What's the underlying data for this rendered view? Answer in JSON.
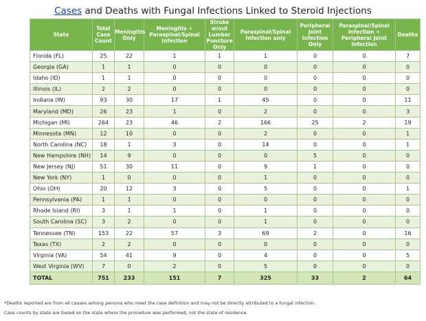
{
  "title": {
    "link_text": "Cases",
    "rest": " and Deaths with Fungal Infections Linked to Steroid Injections"
  },
  "table": {
    "headers": [
      "State",
      "Total Case Count",
      "Meningitis Only",
      "Meningitis + Paraspinal/Spinal Infection",
      "Stroke w/out Lumbar Puncture Only",
      "Paraspinal/Spinal Infection only",
      "Peripheral Joint Infection Only",
      "Paraspinal/Spinal Infection + Peripheral Joint Infection",
      "Deaths"
    ],
    "rows": [
      [
        "Florida (FL)",
        "25",
        "22",
        "1",
        "1",
        "1",
        "0",
        "0",
        "7"
      ],
      [
        "Georgia (GA)",
        "1",
        "1",
        "0",
        "0",
        "0",
        "0",
        "0",
        "0"
      ],
      [
        "Idaho (ID)",
        "1",
        "1",
        "0",
        "0",
        "0",
        "0",
        "0",
        "0"
      ],
      [
        "Illinois (IL)",
        "2",
        "2",
        "0",
        "0",
        "0",
        "0",
        "0",
        "0"
      ],
      [
        "Indiana (IN)",
        "93",
        "30",
        "17",
        "1",
        "45",
        "0",
        "0",
        "11"
      ],
      [
        "Maryland (MD)",
        "26",
        "23",
        "1",
        "0",
        "2",
        "0",
        "0",
        "3"
      ],
      [
        "Michigan (MI)",
        "264",
        "23",
        "46",
        "2",
        "166",
        "25",
        "2",
        "19"
      ],
      [
        "Minnesota (MN)",
        "12",
        "10",
        "0",
        "0",
        "2",
        "0",
        "0",
        "1"
      ],
      [
        "North Carolina (NC)",
        "18",
        "1",
        "3",
        "0",
        "14",
        "0",
        "0",
        "1"
      ],
      [
        "New Hampshire (NH)",
        "14",
        "9",
        "0",
        "0",
        "0",
        "5",
        "0",
        "0"
      ],
      [
        "New Jersey (NJ)",
        "51",
        "30",
        "11",
        "0",
        "9",
        "1",
        "0",
        "0"
      ],
      [
        "New York (NY)",
        "1",
        "0",
        "0",
        "0",
        "1",
        "0",
        "0",
        "0"
      ],
      [
        "Ohio (OH)",
        "20",
        "12",
        "3",
        "0",
        "5",
        "0",
        "0",
        "1"
      ],
      [
        "Pennsylvania (PA)",
        "1",
        "1",
        "0",
        "0",
        "0",
        "0",
        "0",
        "0"
      ],
      [
        "Rhode Island (RI)",
        "3",
        "1",
        "1",
        "0",
        "1",
        "0",
        "0",
        "0"
      ],
      [
        "South Carolina (SC)",
        "3",
        "2",
        "0",
        "0",
        "1",
        "0",
        "0",
        "0"
      ],
      [
        "Tennessee (TN)",
        "153",
        "22",
        "57",
        "3",
        "69",
        "2",
        "0",
        "16"
      ],
      [
        "Texas (TX)",
        "2",
        "2",
        "0",
        "0",
        "0",
        "0",
        "0",
        "0"
      ],
      [
        "Virginia (VA)",
        "54",
        "41",
        "9",
        "0",
        "4",
        "0",
        "0",
        "5"
      ],
      [
        "West Virginia (WV)",
        "7",
        "0",
        "2",
        "0",
        "5",
        "0",
        "0",
        "0"
      ]
    ],
    "total": [
      "TOTAL",
      "751",
      "233",
      "151",
      "7",
      "325",
      "33",
      "2",
      "64"
    ]
  },
  "notes": [
    "*Deaths reported are from all causes among persons who meet the case definition and may not be directly attributed to a fungal infection.",
    "Case counts by state are based on the state where the procedure was performed, not the state of residence."
  ],
  "colors": {
    "header_bg": "#78b64d",
    "total_bg": "#d2e6b8",
    "alt_row_bg": "#e9f2dc",
    "link": "#1a3fa8"
  }
}
